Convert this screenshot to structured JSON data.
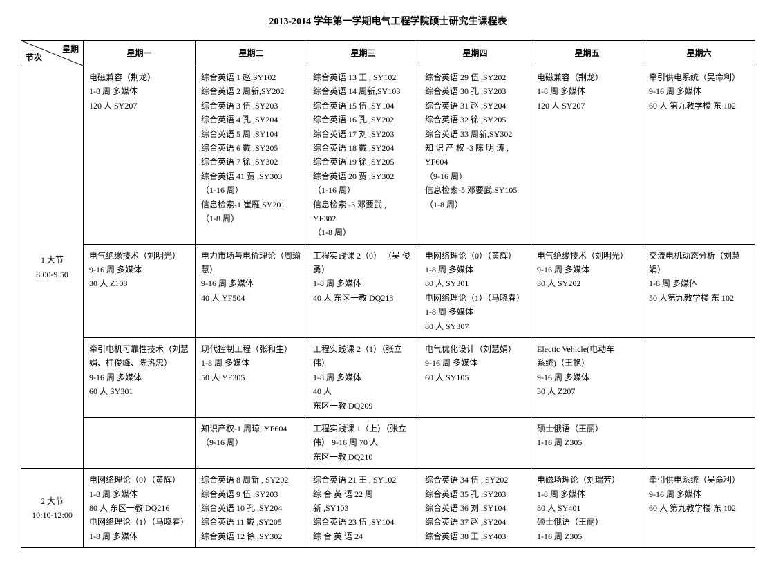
{
  "title": "2013-2014 学年第一学期电气工程学院硕士研究生课程表",
  "header": {
    "cornerTop": "星期",
    "cornerBottom": "节次",
    "days": [
      "星期一",
      "星期二",
      "星期三",
      "星期四",
      "星期五",
      "星期六"
    ]
  },
  "periods": [
    {
      "label": "1 大节",
      "time": "8:00-9:50",
      "rowspan": 4
    },
    {
      "label": "2 大节",
      "time": "10:10-12:00",
      "rowspan": 1
    }
  ],
  "rows": [
    {
      "periodIndex": 0,
      "cells": [
        [
          "电磁兼容（荆龙）",
          "1-8 周 多媒体",
          "120 人   SY207"
        ],
        [
          "综合英语 1  赵,SY102",
          "综合英语 2  周新,SY202",
          "综合英语 3  伍   ,SY203",
          "综合英语 4  孔   ,SY204",
          "综合英语 5 周   ,SY104",
          "综合英语 6  戴   ,SY205",
          "综合英语 7  徐   ,SY302",
          "综合英语 41 贾   ,SY303",
          "（1-16 周）",
          "信息检索-1 崔雁,SY201",
          "（1-8 周）"
        ],
        [
          "综合英语 13 王    ,  SY102",
          "综合英语 14 周新,SY103",
          "综合英语 15 伍    ,SY104",
          "综合英语 16 孔     ,SY202",
          "综合英语 17 刘    ,SY203",
          "综合英语 18 戴    ,SY204",
          "综合英语 19 徐    ,SY205",
          "综合英语 20 贾    ,SY302",
          "（1-16 周）",
          "信息检索 -3  邓要武 ,",
          "YF302",
          "（1-8 周）"
        ],
        [
          "综合英语 29 伍   ,SY202",
          "综合英语 30 孔      ,SY203",
          "综合英语 31 赵   ,SY204",
          "综合英语 32 徐   ,SY205",
          "综合英语 33 周新,SY302",
          "知 识 产 权 -3  陈 明 涛 ,",
          "YF604",
          "（9-16 周）",
          "信息检索-5 邓要武,SY105",
          "（1-8 周）"
        ],
        [
          "电磁兼容（荆龙）",
          "1-8 周 多媒体",
          "120 人   SY207"
        ],
        [
          "牵引供电系统（吴命利）",
          "9-16 周 多媒体",
          "60 人 第九教学楼 东 102"
        ]
      ]
    },
    {
      "cells": [
        [
          "电气绝缘技术（刘明光）",
          "9-16 周 多媒体",
          "30 人   Z108"
        ],
        [
          "电力市场与电价理论（周瑜慧）",
          "9-16 周  多媒体",
          "40 人   YF504"
        ],
        [
          "工程实践课 2（0） （吴 俊",
          "勇）",
          "1-8 周 多媒体",
          "40 人   东区一教 DQ213"
        ],
        [
          "电网络理论（0）（黄辉）",
          "1-8 周 多媒体",
          "80 人   SY301",
          "电网络理论（1）（马晓春）",
          "1-8 周 多媒体",
          "80 人   SY307"
        ],
        [
          "电气绝缘技术（刘明光）",
          "9-16 周 多媒体",
          "30 人 SY202"
        ],
        [
          "交流电机动态分析（刘慧",
          "娟）",
          "1-8 周 多媒体",
          "50 人第九教学楼 东 102"
        ]
      ]
    },
    {
      "cells": [
        [
          "牵引电机可靠性技术（刘慧",
          "娟、桂俊峰、陈洛忠）",
          "9-16 周   多媒体",
          "60 人   SY301"
        ],
        [
          "现代控制工程（张和生）",
          "1-8 周 多媒体",
          "50 人   YF305"
        ],
        [
          "工程实践课  2（1）（张立",
          "伟）",
          "1-8 周 多媒体",
          "40 人",
          "东区一教 DQ209"
        ],
        [
          "电气优化设计（刘慧娟）",
          "9-16 周 多媒体",
          "60 人   SY105"
        ],
        [
          "Electic  Vehicle(电动车",
          "系统)（王艳）",
          "9-16 周 多媒体",
          "30 人   Z207"
        ],
        []
      ]
    },
    {
      "cells": [
        [],
        [
          "知识产权-1 周琼, YF604",
          "（9-16 周）"
        ],
        [
          "工程实践课 1（上）（张立",
          "伟）  9-16 周    70 人",
          "东区一教 DQ210"
        ],
        [],
        [
          "硕士俄语（王丽）",
          "1-16 周 Z305"
        ],
        []
      ]
    },
    {
      "periodIndex": 1,
      "cells": [
        [
          "电网络理论（0）（黄辉）",
          "1-8 周 多媒体",
          "80 人 东区一教 DQ216",
          "电网络理论（1）（马晓春）",
          "1-8 周 多媒体"
        ],
        [
          "综合英语 8 周新 ,  SY202",
          "综合英语 9   伍 ,SY203",
          "综合英语 10 孔    ,SY204",
          "综合英语 11 戴    ,SY205",
          "综合英语 12 徐    ,SY302"
        ],
        [
          "综合英语 21 王    , SY102",
          "综  合  英  语   22   周",
          "新   ,SY103",
          "综合英语 23 伍    ,SY104",
          "综   合   英   语    24"
        ],
        [
          "综合英语 34 伍    , SY202",
          "综合英语 35 孔    ,SY203",
          "综合英语 36 刘    ,SY104",
          "综合英语 37 赵    ,SY204",
          "综合英语 38 王    ,SY403"
        ],
        [
          "电磁场理论（刘瑞芳）",
          "1-8 周 多媒体",
          "80 人   SY401",
          "硕士俄语（王丽）",
          "1-16 周 Z305"
        ],
        [
          "牵引供电系统（吴命利）",
          "9-16 周 多媒体",
          "60 人 第九教学楼 东 102"
        ]
      ]
    }
  ],
  "style": {
    "background_color": "#ffffff",
    "text_color": "#000000",
    "border_color": "#000000",
    "title_fontsize": 14,
    "cell_fontsize": 12,
    "font_family": "SimSun"
  }
}
